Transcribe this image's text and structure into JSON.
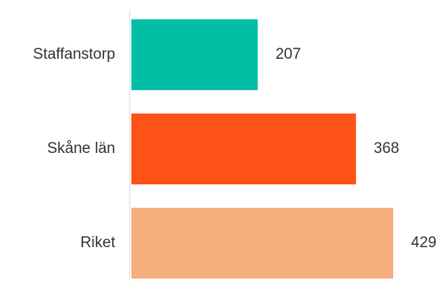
{
  "chart_data": {
    "type": "bar",
    "orientation": "horizontal",
    "categories": [
      "Staffanstorp",
      "Skåne län",
      "Riket"
    ],
    "values": [
      207,
      368,
      429
    ],
    "colors": [
      "#00BFA5",
      "#FF5216",
      "#F5AE7D"
    ],
    "title": "",
    "xlabel": "",
    "ylabel": "",
    "xlim": [
      0,
      429
    ],
    "grid": false,
    "legend": "none",
    "axis_color": "#d9d9d9",
    "text_color": "#333333"
  }
}
